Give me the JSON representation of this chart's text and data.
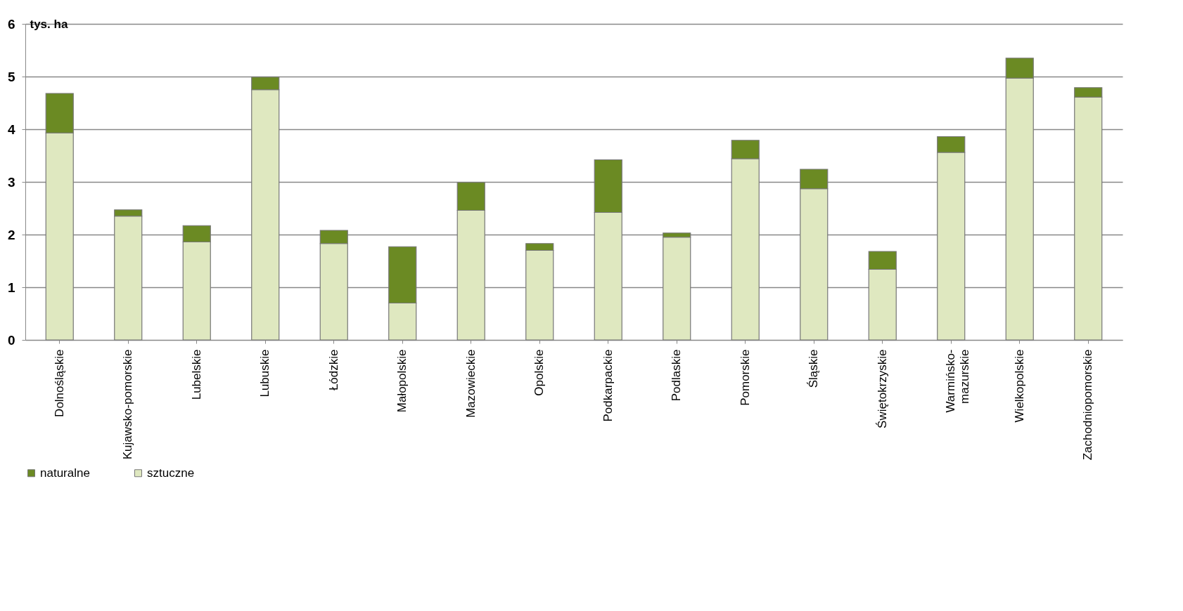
{
  "chart_data": {
    "type": "bar",
    "ylabel": "tys. ha",
    "stacked": true,
    "categories": [
      "Dolnośląskie",
      "Kujawsko-pomorskie",
      "Lubelskie",
      "Lubuskie",
      "Łódzkie",
      "Małopolskie",
      "Mazowieckie",
      "Opolskie",
      "Podkarpackie",
      "Podlaskie",
      "Pomorskie",
      "Śląskie",
      "Świętokrzyskie",
      "Warmińsko-\nmazurskie",
      "Wielkopolskie",
      "Zachodniopomorskie"
    ],
    "series": [
      {
        "name": "sztuczne",
        "color": "#dfe8c0",
        "values": [
          3.93,
          2.35,
          1.86,
          4.75,
          1.83,
          0.7,
          2.46,
          1.7,
          2.42,
          1.95,
          3.44,
          2.87,
          1.34,
          3.56,
          4.97,
          4.61
        ]
      },
      {
        "name": "naturalne",
        "color": "#6b8a23",
        "values": [
          0.75,
          0.12,
          0.31,
          0.24,
          0.25,
          1.07,
          0.53,
          0.13,
          1.0,
          0.08,
          0.35,
          0.37,
          0.34,
          0.3,
          0.38,
          0.18
        ]
      }
    ],
    "ylim": [
      0,
      6
    ],
    "yticks": [
      0,
      1,
      2,
      3,
      4,
      5,
      6
    ],
    "grid": "y",
    "legend": "bottom"
  }
}
